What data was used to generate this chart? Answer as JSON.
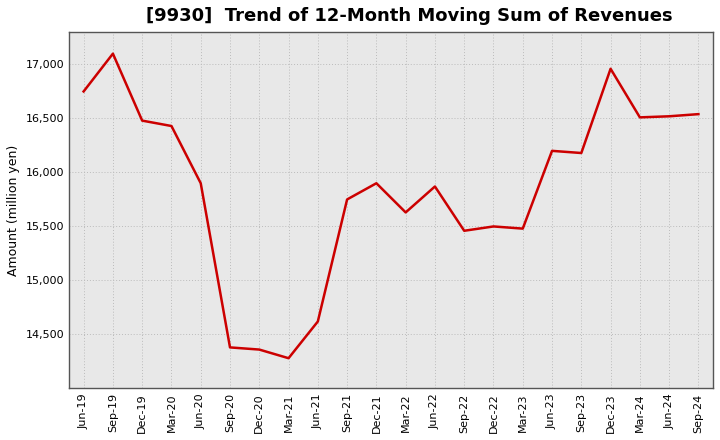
{
  "title": "[9930]  Trend of 12-Month Moving Sum of Revenues",
  "ylabel": "Amount (million yen)",
  "line_color": "#cc0000",
  "line_width": 1.8,
  "background_color": "#ffffff",
  "plot_bg_color": "#e8e8e8",
  "grid_color": "#bbbbbb",
  "spine_color": "#555555",
  "xlabels": [
    "Jun-19",
    "Sep-19",
    "Dec-19",
    "Mar-20",
    "Jun-20",
    "Sep-20",
    "Dec-20",
    "Mar-21",
    "Jun-21",
    "Sep-21",
    "Dec-21",
    "Mar-22",
    "Jun-22",
    "Sep-22",
    "Dec-22",
    "Mar-23",
    "Jun-23",
    "Sep-23",
    "Dec-23",
    "Mar-24",
    "Jun-24",
    "Sep-24"
  ],
  "values": [
    16750,
    17100,
    16480,
    16430,
    15900,
    14380,
    14360,
    14280,
    14620,
    15750,
    15900,
    15630,
    15870,
    15460,
    15500,
    15480,
    16200,
    16180,
    16960,
    16510,
    16520,
    16540
  ],
  "ylim": [
    14000,
    17300
  ],
  "yticks": [
    14500,
    15000,
    15500,
    16000,
    16500,
    17000
  ],
  "title_fontsize": 13,
  "tick_fontsize": 8,
  "ylabel_fontsize": 9
}
